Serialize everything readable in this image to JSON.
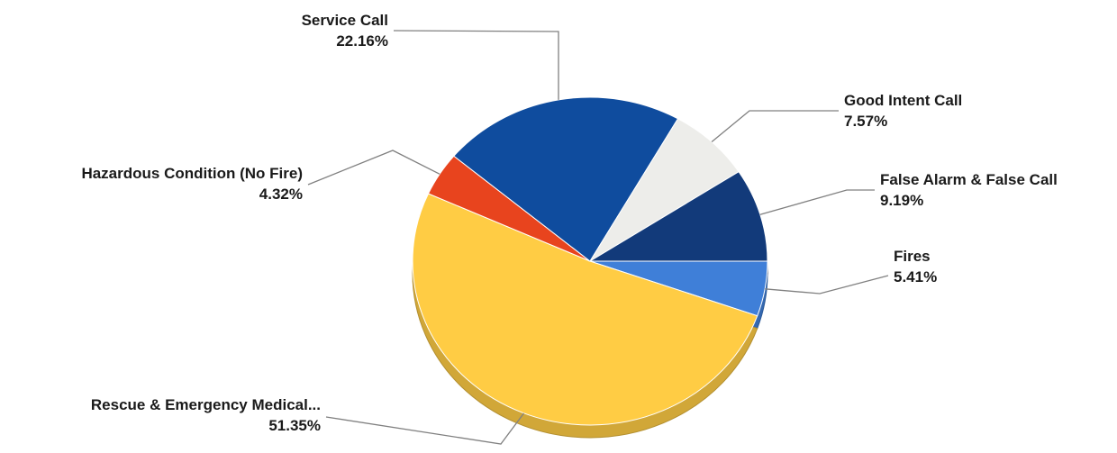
{
  "chart_data": {
    "type": "pie",
    "slices": [
      {
        "label": "Fires",
        "value": 5.41,
        "value_label": "5.41%",
        "color": "#3f7fd8"
      },
      {
        "label": "Rescue & Emergency Medical...",
        "value": 51.35,
        "value_label": "51.35%",
        "color": "#ffcc44"
      },
      {
        "label": "Hazardous Condition (No Fire)",
        "value": 4.32,
        "value_label": "4.32%",
        "color": "#e8441e"
      },
      {
        "label": "Service Call",
        "value": 22.16,
        "value_label": "22.16%",
        "color": "#0f4c9e"
      },
      {
        "label": "Good Intent Call",
        "value": 7.57,
        "value_label": "7.57%",
        "color": "#ededea"
      },
      {
        "label": "False Alarm & False Call",
        "value": 9.19,
        "value_label": "9.19%",
        "color": "#123a7a"
      }
    ],
    "style": "3d-tilted",
    "legend": "none",
    "labels": "callouts-with-leader-lines"
  }
}
